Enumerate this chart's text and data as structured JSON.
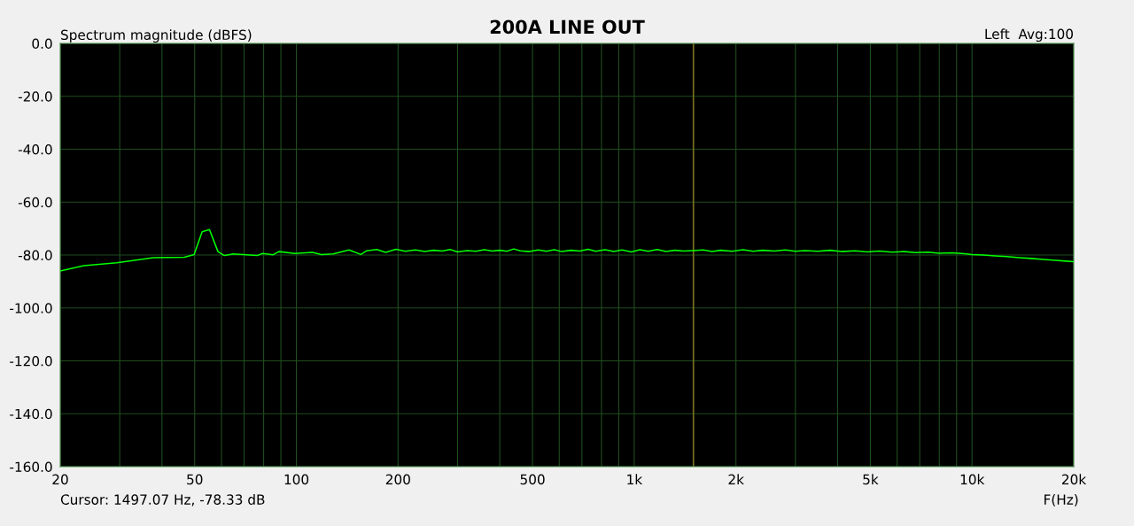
{
  "chart_data": {
    "type": "line",
    "title": "200A LINE OUT",
    "ylabel": "Spectrum magnitude (dBFS)",
    "xlabel": "F(Hz)",
    "annotations": [
      "Left  Avg:100",
      "Cursor: 1497.07 Hz, -78.33 dB"
    ],
    "log": "x",
    "grid": true,
    "marker": "none",
    "line_style": "solid",
    "xlim": [
      20,
      20000
    ],
    "ylim": [
      -160,
      0
    ],
    "xticks": [
      20,
      {
        "value": 30,
        "label": null
      },
      {
        "value": 40,
        "label": null
      },
      50,
      {
        "value": 60,
        "label": null
      },
      {
        "value": 70,
        "label": null
      },
      {
        "value": 80,
        "label": null
      },
      {
        "value": 90,
        "label": null
      },
      100,
      200,
      {
        "value": 300,
        "label": null
      },
      {
        "value": 400,
        "label": null
      },
      500,
      {
        "value": 600,
        "label": null
      },
      {
        "value": 700,
        "label": null
      },
      {
        "value": 800,
        "label": null
      },
      {
        "value": 900,
        "label": null
      },
      {
        "value": 1000,
        "label": "1k"
      },
      {
        "value": 2000,
        "label": "2k"
      },
      {
        "value": 3000,
        "label": null
      },
      {
        "value": 4000,
        "label": null
      },
      {
        "value": 5000,
        "label": "5k"
      },
      {
        "value": 6000,
        "label": null
      },
      {
        "value": 7000,
        "label": null
      },
      {
        "value": 8000,
        "label": null
      },
      {
        "value": 9000,
        "label": null
      },
      {
        "value": 10000,
        "label": "10k"
      },
      {
        "value": 20000,
        "label": "20k"
      }
    ],
    "yticks": [
      {
        "value": -160,
        "label": "-160.0"
      },
      {
        "value": -140,
        "label": "-140.0"
      },
      {
        "value": -120,
        "label": "-120.0"
      },
      {
        "value": -100,
        "label": "-100.0"
      },
      {
        "value": -80,
        "label": "-80.0"
      },
      {
        "value": -60,
        "label": "-60.0"
      },
      {
        "value": -40,
        "label": "-40.0"
      },
      {
        "value": -20,
        "label": "-20.0"
      },
      {
        "value": 0,
        "label": "0.0"
      }
    ],
    "ref_lines": [
      {
        "axis": "x",
        "value": 1497.07,
        "color": "#7a7020"
      }
    ],
    "series": [
      {
        "color": "#00ff00",
        "x": [
          20,
          23.5,
          29.4,
          37.7,
          46.6,
          49.8,
          52.6,
          55.3,
          58.6,
          61.2,
          65.0,
          76.5,
          79.4,
          85.4,
          88.7,
          99.0,
          111.6,
          118.5,
          128.5,
          143.2,
          155.2,
          161.4,
          173,
          183.8,
          197,
          210,
          225,
          240,
          255,
          270,
          285,
          300,
          320,
          340,
          360,
          380,
          400,
          420,
          440,
          460,
          490,
          520,
          550,
          580,
          610,
          650,
          690,
          730,
          770,
          820,
          870,
          920,
          980,
          1040,
          1100,
          1170,
          1240,
          1320,
          1400,
          1497.07,
          1600,
          1700,
          1800,
          1950,
          2100,
          2250,
          2400,
          2600,
          2800,
          3000,
          3200,
          3500,
          3800,
          4100,
          4500,
          4900,
          5300,
          5800,
          6300,
          6800,
          7400,
          8000,
          8700,
          9500,
          10000,
          10800,
          11700,
          12700,
          13800,
          15000,
          16300,
          17700,
          19000,
          20000
        ],
        "values": [
          -86.0,
          -84.0,
          -82.9,
          -81.0,
          -80.8,
          -79.8,
          -71.2,
          -70.4,
          -78.7,
          -80.2,
          -79.6,
          -80.2,
          -79.4,
          -79.9,
          -78.7,
          -79.4,
          -79.0,
          -79.8,
          -79.6,
          -78.1,
          -79.8,
          -78.4,
          -77.9,
          -79.0,
          -77.8,
          -78.6,
          -78.1,
          -78.7,
          -78.2,
          -78.5,
          -77.9,
          -78.8,
          -78.3,
          -78.6,
          -78.0,
          -78.5,
          -78.2,
          -78.6,
          -77.7,
          -78.4,
          -78.7,
          -78.1,
          -78.6,
          -78.0,
          -78.7,
          -78.2,
          -78.5,
          -77.8,
          -78.6,
          -78.0,
          -78.7,
          -78.1,
          -78.8,
          -78.0,
          -78.6,
          -77.9,
          -78.7,
          -78.2,
          -78.5,
          -78.33,
          -78.1,
          -78.7,
          -78.2,
          -78.6,
          -78.0,
          -78.6,
          -78.2,
          -78.5,
          -78.1,
          -78.6,
          -78.3,
          -78.6,
          -78.2,
          -78.7,
          -78.4,
          -78.8,
          -78.5,
          -78.9,
          -78.7,
          -79.1,
          -78.9,
          -79.3,
          -79.2,
          -79.5,
          -79.8,
          -80.0,
          -80.3,
          -80.6,
          -81.0,
          -81.3,
          -81.7,
          -82.0,
          -82.3,
          -82.5
        ]
      }
    ]
  }
}
